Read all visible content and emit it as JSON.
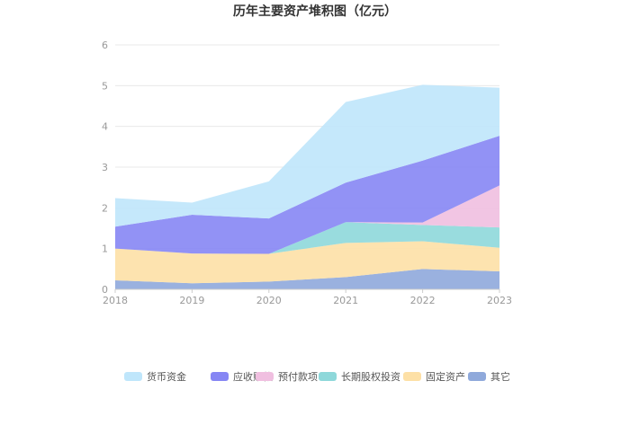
{
  "chart_data": {
    "type": "area",
    "stacked": true,
    "title": "历年主要资产堆积图（亿元）",
    "x": [
      "2018",
      "2019",
      "2020",
      "2021",
      "2022",
      "2023"
    ],
    "ylim": [
      0,
      6
    ],
    "yticks": [
      "0",
      "1",
      "2",
      "3",
      "4",
      "5",
      "6"
    ],
    "grid": true,
    "legend_position": "bottom",
    "series": [
      {
        "name": "其它",
        "color": "#8fa9db",
        "values": [
          0.22,
          0.15,
          0.19,
          0.3,
          0.5,
          0.44
        ]
      },
      {
        "name": "固定资产",
        "color": "#fde0a6",
        "values": [
          0.78,
          0.73,
          0.68,
          0.84,
          0.68,
          0.58
        ]
      },
      {
        "name": "长期股权投资",
        "color": "#8ed8da",
        "values": [
          0.0,
          0.0,
          0.0,
          0.51,
          0.4,
          0.5
        ]
      },
      {
        "name": "预付款项",
        "color": "#f0bfe0",
        "values": [
          0.0,
          0.0,
          0.0,
          0.0,
          0.06,
          1.03
        ]
      },
      {
        "name": "应收账款",
        "color": "#8686f4",
        "values": [
          0.54,
          0.95,
          0.87,
          0.97,
          1.52,
          1.22
        ]
      },
      {
        "name": "货币资金",
        "color": "#bfe6fb",
        "values": [
          0.7,
          0.3,
          0.91,
          1.98,
          1.86,
          1.18
        ]
      }
    ],
    "legend_order": [
      "货币资金",
      "应收账款",
      "预付款项",
      "长期股权投资",
      "固定资产",
      "其它"
    ]
  }
}
